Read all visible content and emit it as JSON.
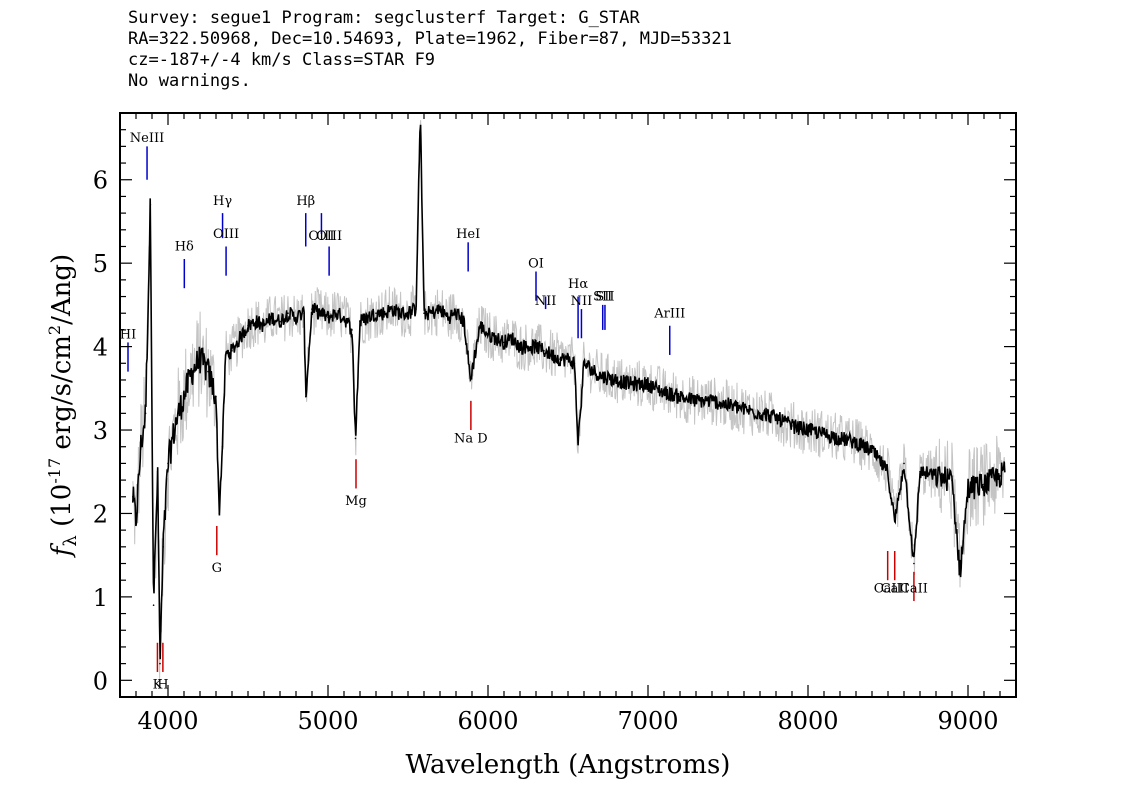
{
  "header": {
    "lines": [
      "Survey: segue1 Program: segclusterf Target: G_STAR",
      "RA=322.50968, Dec=10.54693, Plate=1962, Fiber=87, MJD=53321",
      "cz=-187+/-4 km/s Class=STAR F9",
      "No warnings."
    ]
  },
  "chart_data": {
    "type": "line",
    "xlabel": "Wavelength (Angstroms)",
    "ylabel": "f_λ (10^-17 erg/s/cm^2/Ang)",
    "xlim": [
      3700,
      9300
    ],
    "ylim": [
      -0.2,
      6.8
    ],
    "xticks": [
      4000,
      5000,
      6000,
      7000,
      8000,
      9000
    ],
    "yticks": [
      0,
      1,
      2,
      3,
      4,
      5,
      6
    ],
    "grid": false,
    "series": [
      {
        "color": "#000000",
        "x": [
          3780,
          3800,
          3830,
          3860,
          3890,
          3910,
          3935,
          3950,
          3970,
          4000,
          4050,
          4100,
          4150,
          4200,
          4250,
          4300,
          4320,
          4340,
          4360,
          4400,
          4450,
          4500,
          4550,
          4600,
          4650,
          4700,
          4750,
          4800,
          4850,
          4861,
          4900,
          4950,
          5000,
          5050,
          5100,
          5150,
          5172,
          5200,
          5250,
          5300,
          5350,
          5400,
          5450,
          5500,
          5550,
          5577,
          5600,
          5650,
          5700,
          5750,
          5800,
          5850,
          5890,
          5950,
          6000,
          6050,
          6100,
          6150,
          6200,
          6250,
          6300,
          6350,
          6400,
          6450,
          6500,
          6540,
          6563,
          6600,
          6700,
          6800,
          6900,
          7000,
          7100,
          7200,
          7300,
          7400,
          7500,
          7600,
          7700,
          7800,
          7900,
          8000,
          8100,
          8200,
          8300,
          8400,
          8498,
          8542,
          8600,
          8662,
          8700,
          8800,
          8900,
          8950,
          9000,
          9100,
          9200,
          9230
        ],
        "y": [
          2.2,
          1.9,
          2.8,
          3.2,
          5.7,
          0.9,
          2.5,
          0.2,
          1.6,
          2.6,
          3.1,
          3.4,
          3.7,
          3.85,
          3.7,
          3.4,
          2.0,
          2.8,
          3.9,
          3.95,
          4.1,
          4.25,
          4.3,
          4.25,
          4.35,
          4.3,
          4.4,
          4.35,
          4.4,
          3.4,
          4.45,
          4.4,
          4.35,
          4.4,
          4.35,
          4.2,
          2.9,
          4.3,
          4.35,
          4.4,
          4.4,
          4.45,
          4.4,
          4.4,
          4.45,
          6.8,
          4.4,
          4.4,
          4.45,
          4.35,
          4.4,
          4.3,
          3.6,
          4.25,
          4.15,
          4.1,
          4.05,
          4.1,
          4.0,
          4.0,
          4.0,
          3.95,
          3.9,
          3.85,
          3.85,
          3.8,
          2.85,
          3.8,
          3.65,
          3.6,
          3.55,
          3.55,
          3.45,
          3.4,
          3.35,
          3.35,
          3.3,
          3.25,
          3.2,
          3.15,
          3.05,
          3.0,
          2.95,
          2.9,
          2.85,
          2.75,
          2.5,
          1.9,
          2.6,
          1.4,
          2.5,
          2.45,
          2.4,
          1.3,
          2.3,
          2.35,
          2.45,
          2.5
        ]
      }
    ],
    "annotations": [
      {
        "label": "NeIII",
        "x": 3869,
        "color": "#0000cc",
        "label_y": 6.45,
        "line": [
          6.0,
          6.4
        ]
      },
      {
        "label": "Hδ",
        "x": 4102,
        "color": "#0000cc",
        "label_y": 5.15,
        "line": [
          4.7,
          5.05
        ]
      },
      {
        "label": "Hγ",
        "x": 4341,
        "color": "#0000cc",
        "label_y": 5.7,
        "line": [
          5.3,
          5.6
        ]
      },
      {
        "label": "OIII",
        "x": 4363,
        "color": "#0000cc",
        "label_y": 5.3,
        "line": [
          4.85,
          5.2
        ]
      },
      {
        "label": "Hβ",
        "x": 4861,
        "color": "#0000cc",
        "label_y": 5.7,
        "line": [
          5.2,
          5.6
        ]
      },
      {
        "label": "OIII",
        "x": 4959,
        "color": "#0000cc",
        "label_y": 5.28,
        "line": [
          5.35,
          5.6
        ]
      },
      {
        "label": "OIII",
        "x": 5007,
        "color": "#0000cc",
        "label_y": 5.28,
        "line": [
          4.85,
          5.2
        ]
      },
      {
        "label": "HeI",
        "x": 5876,
        "color": "#0000cc",
        "label_y": 5.3,
        "line": [
          4.9,
          5.25
        ]
      },
      {
        "label": "OI",
        "x": 6300,
        "color": "#0000cc",
        "label_y": 4.95,
        "line": [
          4.55,
          4.9
        ]
      },
      {
        "label": "NII",
        "x": 6360,
        "color": "#0000cc",
        "label_y": 4.5,
        "line": [
          4.45,
          4.6
        ]
      },
      {
        "label": "Hα",
        "x": 6563,
        "color": "#0000cc",
        "label_y": 4.7,
        "line": [
          4.1,
          4.6
        ]
      },
      {
        "label": "NII",
        "x": 6584,
        "color": "#0000cc",
        "label_y": 4.5,
        "line": [
          4.1,
          4.45
        ]
      },
      {
        "label": "SII",
        "x": 6717,
        "color": "#0000cc",
        "label_y": 4.55,
        "line": [
          4.2,
          4.5
        ]
      },
      {
        "label": "SII",
        "x": 6731,
        "color": "#0000cc",
        "label_y": 4.55,
        "line": [
          4.2,
          4.5
        ]
      },
      {
        "label": "ArIII",
        "x": 7136,
        "color": "#0000cc",
        "label_y": 4.35,
        "line": [
          3.9,
          4.25
        ]
      },
      {
        "label": "HI",
        "x": 3750,
        "color": "#0000cc",
        "label_y": 4.1,
        "line": [
          3.7,
          4.05
        ]
      },
      {
        "label": "K",
        "x": 3934,
        "color": "#cc0000",
        "label_y": -0.1,
        "line": [
          0.1,
          0.45
        ]
      },
      {
        "label": "H",
        "x": 3968,
        "color": "#cc0000",
        "label_y": -0.1,
        "line": [
          0.1,
          0.45
        ]
      },
      {
        "label": "G",
        "x": 4305,
        "color": "#cc0000",
        "label_y": 1.3,
        "line": [
          1.5,
          1.85
        ]
      },
      {
        "label": "Mg",
        "x": 5175,
        "color": "#cc0000",
        "label_y": 2.1,
        "line": [
          2.3,
          2.65
        ]
      },
      {
        "label": "Na D",
        "x": 5893,
        "color": "#cc0000",
        "label_y": 2.85,
        "line": [
          3.0,
          3.35
        ]
      },
      {
        "label": "CaII",
        "x": 8498,
        "color": "#cc0000",
        "label_y": 1.05,
        "line": [
          1.2,
          1.55
        ]
      },
      {
        "label": "CaII",
        "x": 8542,
        "color": "#cc0000",
        "label_y": 1.05,
        "line": [
          1.2,
          1.55
        ]
      },
      {
        "label": "CaII",
        "x": 8662,
        "color": "#cc0000",
        "label_y": 1.05,
        "line": [
          0.95,
          1.3
        ]
      }
    ]
  }
}
